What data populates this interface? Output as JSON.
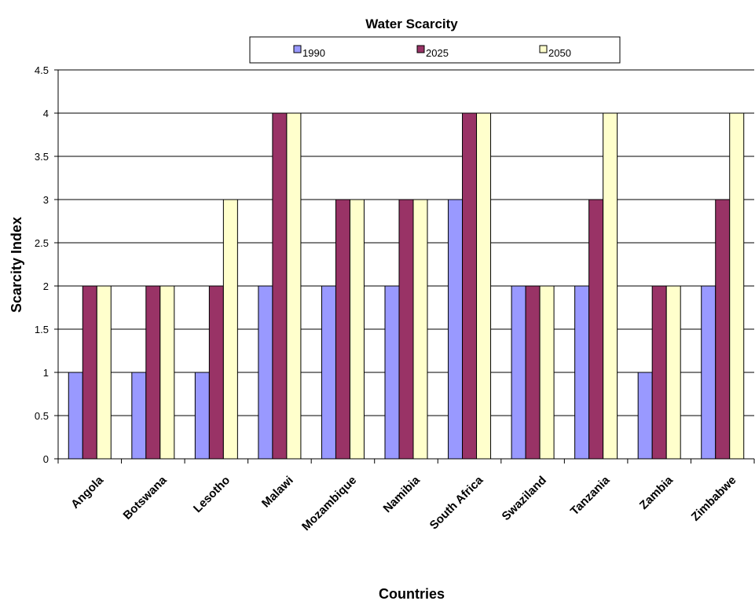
{
  "chart_data": {
    "type": "bar",
    "title": "Water Scarcity",
    "xlabel": "Countries",
    "ylabel": "Scarcity Index",
    "ylim": [
      0,
      4.5
    ],
    "yticks": [
      "0",
      "0.5",
      "1",
      "1.5",
      "2",
      "2.5",
      "3",
      "3.5",
      "4",
      "4.5"
    ],
    "grid": true,
    "legend_position": "top",
    "categories": [
      "Angola",
      "Botswana",
      "Lesotho",
      "Malawi",
      "Mozambique",
      "Namibia",
      "South Africa",
      "Swaziland",
      "Tanzania",
      "Zambia",
      "Zimbabwe"
    ],
    "series": [
      {
        "name": "1990",
        "color": "#9999ff",
        "values": [
          1,
          1,
          1,
          2,
          2,
          2,
          3,
          2,
          2,
          1,
          2
        ]
      },
      {
        "name": "2025",
        "color": "#993366",
        "values": [
          2,
          2,
          2,
          4,
          3,
          3,
          4,
          2,
          3,
          2,
          3
        ]
      },
      {
        "name": "2050",
        "color": "#ffffcc",
        "values": [
          2,
          2,
          3,
          4,
          3,
          3,
          4,
          2,
          4,
          2,
          4
        ]
      }
    ]
  }
}
